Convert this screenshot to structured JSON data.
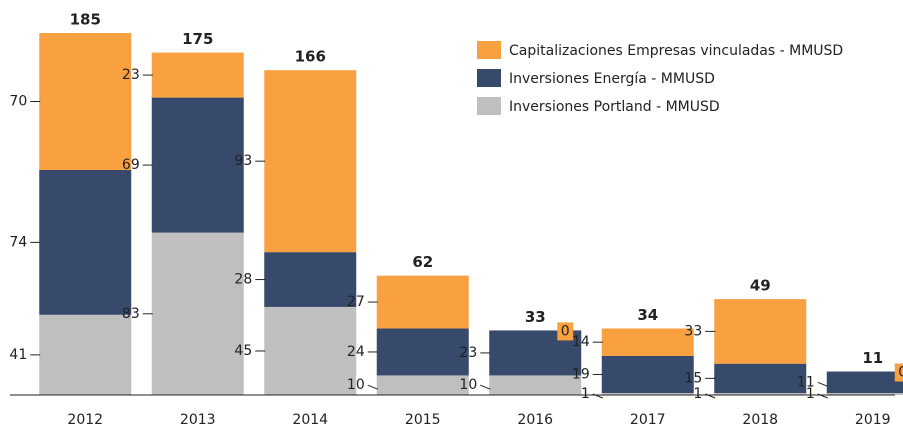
{
  "chart_data": {
    "type": "stacked-bar",
    "categories": [
      "2012",
      "2013",
      "2014",
      "2015",
      "2016",
      "2017",
      "2018",
      "2019"
    ],
    "series": [
      {
        "name": "Capitalizaciones Empresas vinculadas - MMUSD",
        "color": "#f9a040",
        "values": [
          70,
          23,
          93,
          27,
          0,
          14,
          33,
          0
        ]
      },
      {
        "name": "Inversiones Energía - MMUSD",
        "color": "#374a6b",
        "values": [
          74,
          69,
          28,
          24,
          23,
          19,
          15,
          11
        ]
      },
      {
        "name": "Inversiones Portland - MMUSD",
        "color": "#bfbfbf",
        "values": [
          41,
          83,
          45,
          10,
          10,
          1,
          1,
          1
        ]
      }
    ],
    "totals": [
      185,
      175,
      166,
      62,
      33,
      34,
      49,
      11
    ],
    "ylim": [
      0,
      185
    ],
    "legend": "top-right"
  }
}
